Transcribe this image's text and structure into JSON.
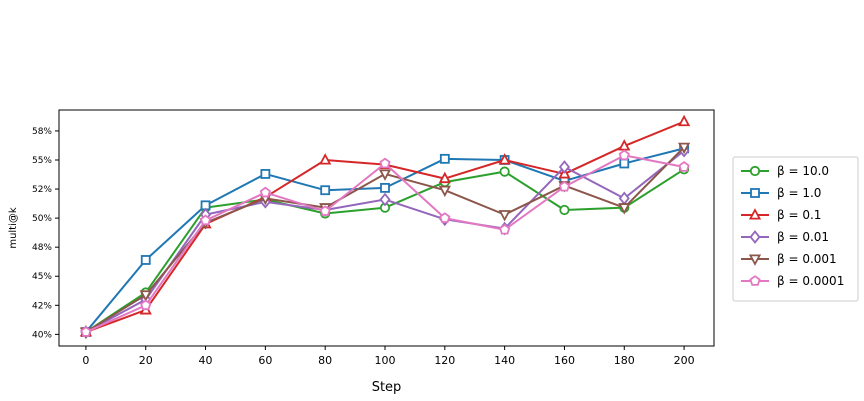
{
  "chart_data": {
    "type": "line",
    "title": "",
    "xlabel": "Step",
    "ylabel": "multi@k",
    "x": [
      0,
      20,
      40,
      60,
      80,
      100,
      120,
      140,
      160,
      180,
      200
    ],
    "xlim": [
      -9,
      210
    ],
    "ylim": [
      39.0,
      59.3
    ],
    "x_ticks": [
      "0",
      "20",
      "40",
      "60",
      "80",
      "100",
      "120",
      "140",
      "160",
      "180",
      "200"
    ],
    "y_ticks": [
      {
        "value": 40.0,
        "label": "40%"
      },
      {
        "value": 42.5,
        "label": "42%"
      },
      {
        "value": 45.0,
        "label": "45%"
      },
      {
        "value": 47.5,
        "label": "48%"
      },
      {
        "value": 50.0,
        "label": "50%"
      },
      {
        "value": 52.5,
        "label": "52%"
      },
      {
        "value": 55.0,
        "label": "55%"
      },
      {
        "value": 57.5,
        "label": "58%"
      }
    ],
    "grid": false,
    "legend_position": "right",
    "series": [
      {
        "name": "β = 10.0",
        "color": "#2ca02c",
        "marker": "circle",
        "values": [
          40.2,
          43.6,
          50.9,
          51.6,
          50.4,
          50.9,
          53.1,
          54.0,
          50.7,
          50.9,
          54.2
        ]
      },
      {
        "name": "β = 1.0",
        "color": "#1f77b4",
        "marker": "square",
        "values": [
          40.2,
          46.4,
          51.1,
          53.8,
          52.4,
          52.6,
          55.1,
          55.0,
          53.2,
          54.7,
          56.0
        ]
      },
      {
        "name": "β = 0.1",
        "color": "#d62728",
        "marker": "triangle-up",
        "values": [
          40.2,
          42.1,
          49.5,
          51.8,
          55.0,
          54.6,
          53.4,
          55.0,
          53.8,
          56.2,
          58.3
        ]
      },
      {
        "name": "β = 0.01",
        "color": "#9467bd",
        "marker": "diamond",
        "values": [
          40.2,
          43.0,
          50.3,
          51.4,
          50.7,
          51.6,
          49.9,
          49.1,
          54.4,
          51.7,
          55.8
        ]
      },
      {
        "name": "β = 0.001",
        "color": "#8c564b",
        "marker": "triangle-down",
        "values": [
          40.2,
          43.4,
          49.6,
          51.7,
          50.9,
          53.8,
          52.4,
          50.3,
          52.8,
          50.9,
          56.1
        ]
      },
      {
        "name": "β = 0.0001",
        "color": "#e377c2",
        "marker": "pentagon",
        "values": [
          40.2,
          42.5,
          49.8,
          52.2,
          50.6,
          54.7,
          50.0,
          49.0,
          52.7,
          55.4,
          54.4
        ]
      }
    ]
  }
}
